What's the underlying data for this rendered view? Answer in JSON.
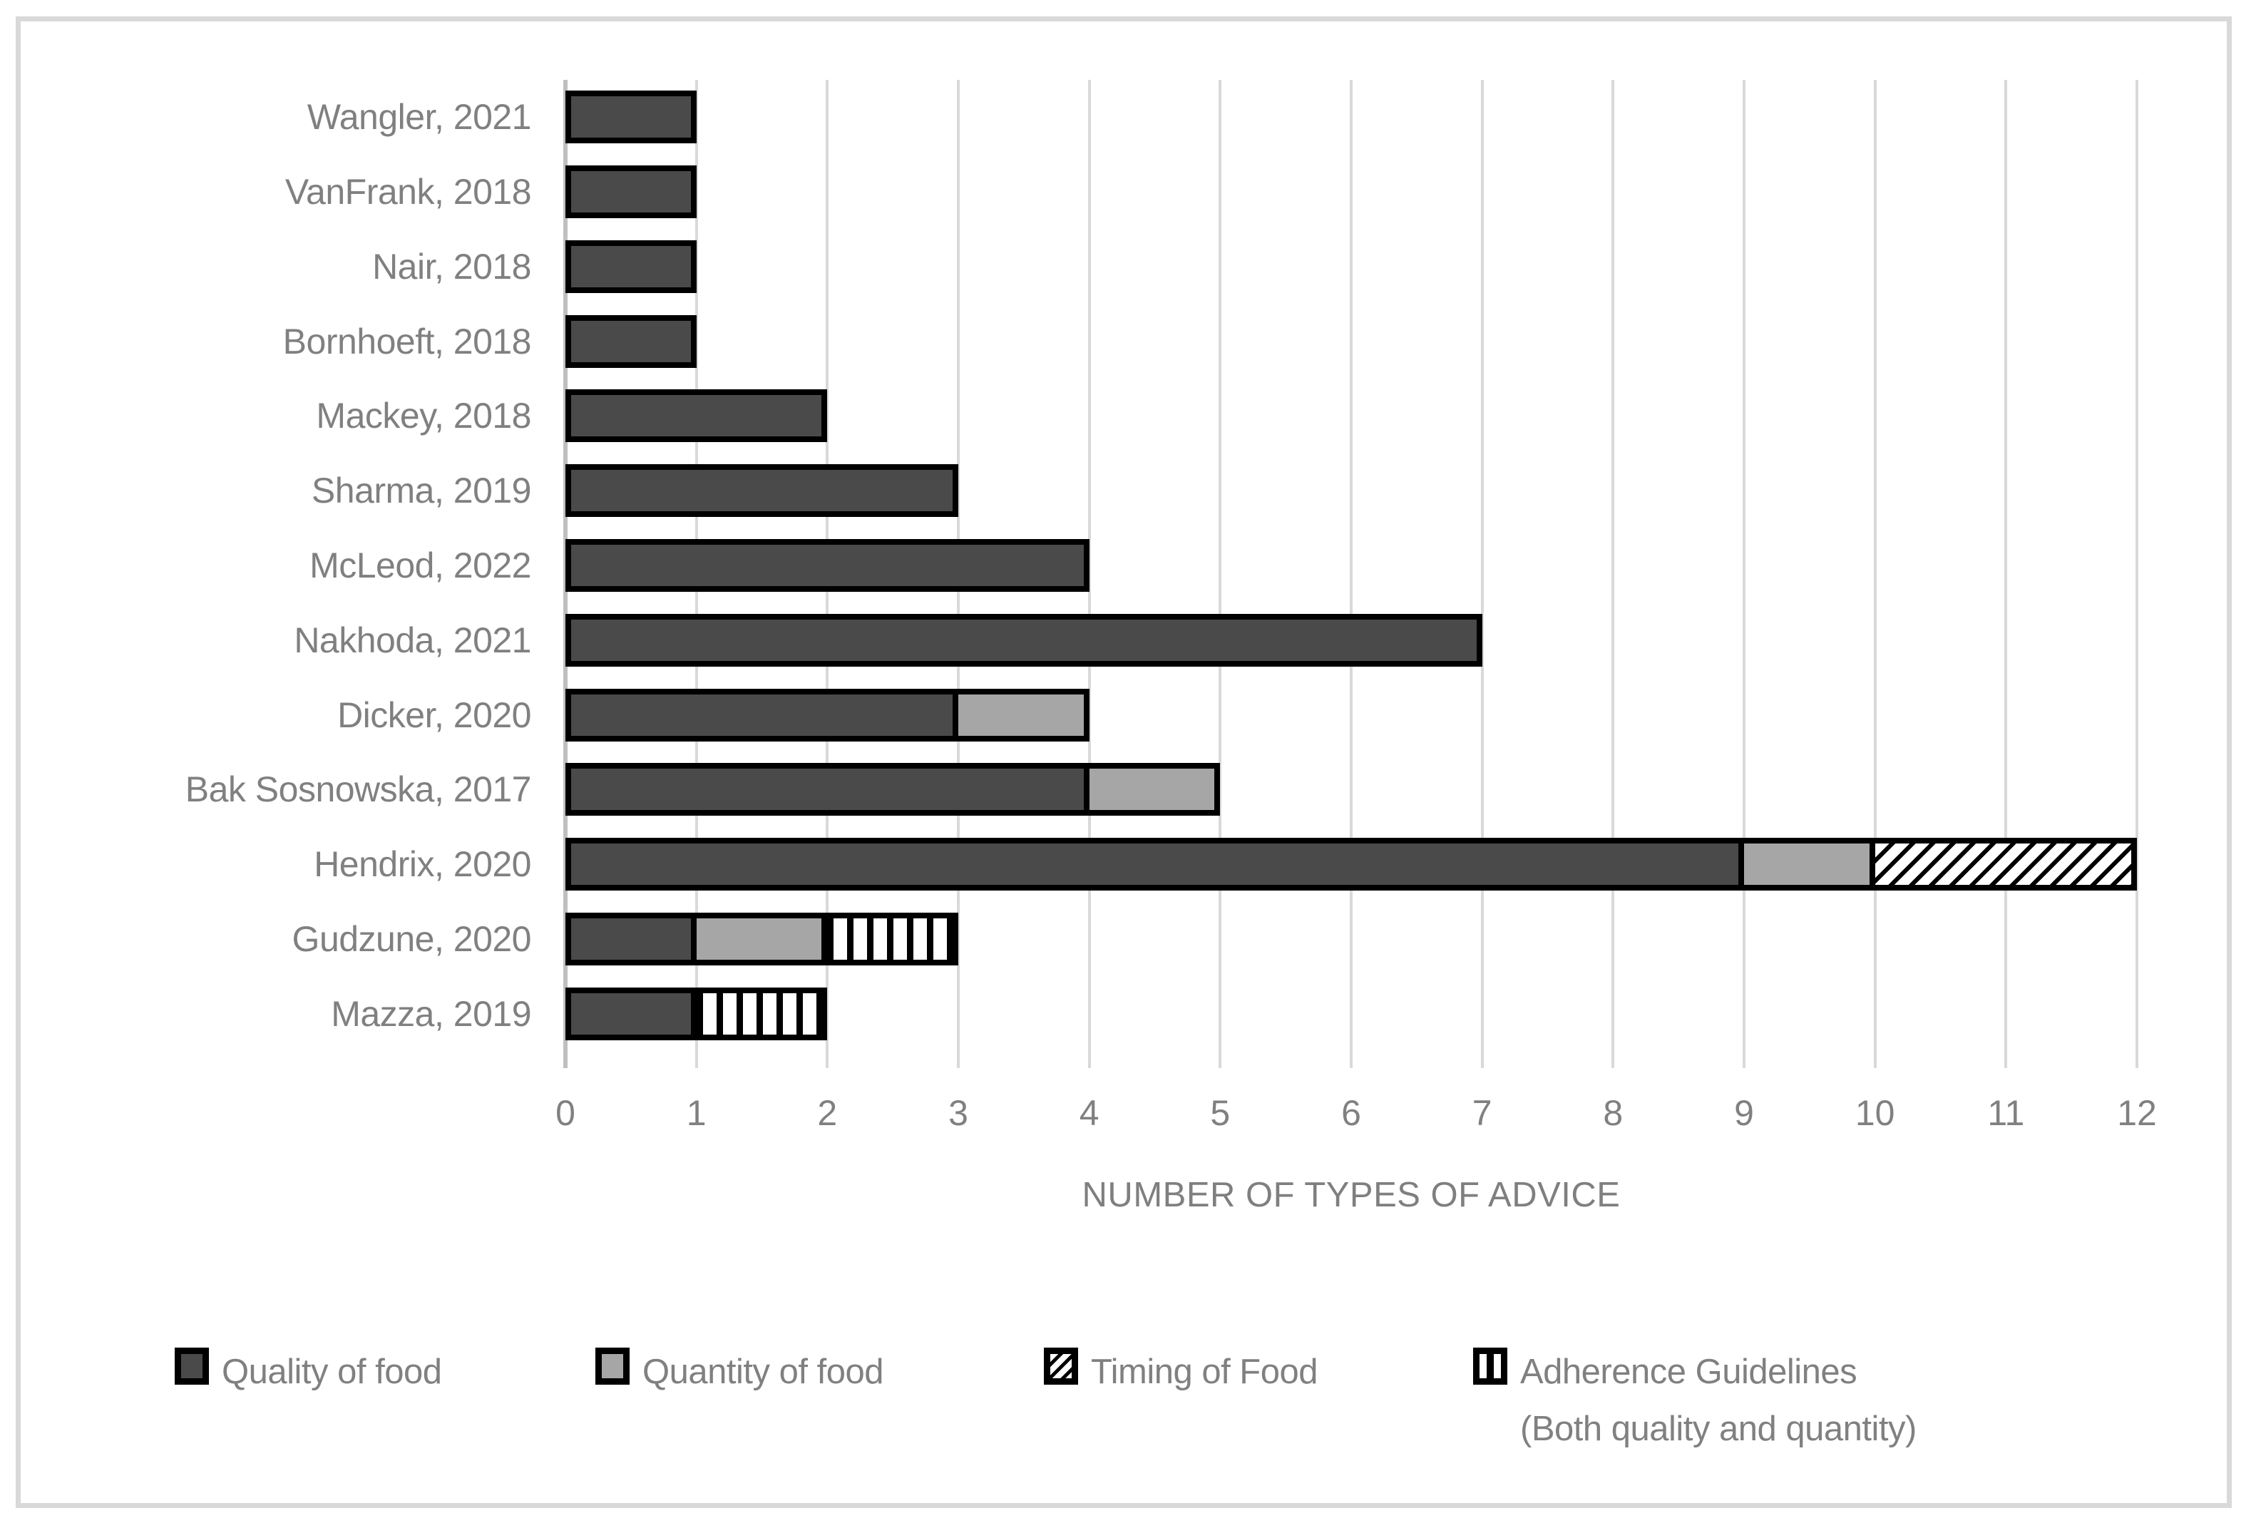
{
  "chart_data": {
    "type": "bar",
    "orientation": "horizontal",
    "stacked": true,
    "title": "",
    "xlabel": "NUMBER OF TYPES OF ADVICE",
    "ylabel": "",
    "xlim": [
      0,
      12
    ],
    "x_ticks": [
      0,
      1,
      2,
      3,
      4,
      5,
      6,
      7,
      8,
      9,
      10,
      11,
      12
    ],
    "grid": true,
    "legend_position": "bottom",
    "categories": [
      "Wangler, 2021",
      "VanFrank, 2018",
      "Nair, 2018",
      "Bornhoeft, 2018",
      "Mackey, 2018",
      "Sharma, 2019",
      "McLeod, 2022",
      "Nakhoda, 2021",
      "Dicker, 2020",
      "Bak Sosnowska, 2017",
      "Hendrix, 2020",
      "Gudzune, 2020",
      "Mazza, 2019"
    ],
    "series": [
      {
        "name": "Quality of food",
        "pattern": "solid-dark",
        "color": "#4A4A4A",
        "values": [
          1,
          1,
          1,
          1,
          2,
          3,
          4,
          7,
          3,
          4,
          9,
          1,
          1
        ]
      },
      {
        "name": "Quantity of food",
        "pattern": "solid-gray",
        "color": "#A6A6A6",
        "values": [
          0,
          0,
          0,
          0,
          0,
          0,
          0,
          0,
          1,
          1,
          1,
          1,
          0
        ]
      },
      {
        "name": "Timing of Food",
        "pattern": "diagonal-hatch",
        "color": "#000000",
        "values": [
          0,
          0,
          0,
          0,
          0,
          0,
          0,
          0,
          0,
          0,
          2,
          0,
          0
        ]
      },
      {
        "name": "Adherence Guidelines (Both quality and quantity)",
        "pattern": "vertical-stripes",
        "color": "#000000",
        "values": [
          0,
          0,
          0,
          0,
          0,
          0,
          0,
          0,
          0,
          0,
          0,
          1,
          1
        ]
      }
    ],
    "totals": [
      1,
      1,
      1,
      1,
      2,
      3,
      4,
      7,
      4,
      5,
      12,
      3,
      2
    ]
  },
  "legend": {
    "items": [
      {
        "label": "Quality of food",
        "label_line2": "",
        "swatch": "solid-dark"
      },
      {
        "label": "Quantity of food",
        "label_line2": "",
        "swatch": "solid-gray"
      },
      {
        "label": "Timing of Food",
        "label_line2": "",
        "swatch": "diagonal-hatch"
      },
      {
        "label": "Adherence Guidelines",
        "label_line2": "(Both quality and quantity)",
        "swatch": "vertical-stripes"
      }
    ]
  },
  "colors": {
    "bar_dark": "#4A4A4A",
    "bar_gray": "#A6A6A6",
    "pattern_black": "#000000",
    "grid_line": "#D9D9D9",
    "axis_line": "#BFBFBF",
    "text_gray": "#808080",
    "frame_border": "#D9D9D9",
    "background": "#FFFFFF"
  }
}
